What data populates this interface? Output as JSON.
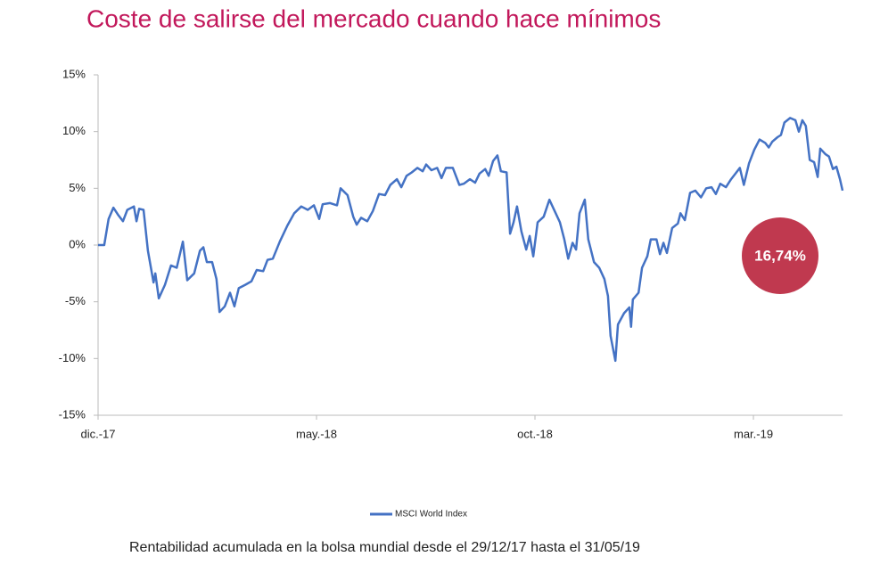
{
  "chart_data": {
    "type": "line",
    "title": "Coste de salirse del mercado cuando hace mínimos",
    "subtitle": "Rentabilidad acumulada en la bolsa mundial desde el 29/12/17 hasta el 31/05/19",
    "annotation": "16,74%",
    "x": [
      0,
      0.14,
      0.24,
      0.35,
      0.45,
      0.57,
      0.67,
      0.82,
      0.88,
      0.94,
      1.04,
      1.14,
      1.27,
      1.31,
      1.39,
      1.53,
      1.67,
      1.8,
      1.94,
      2.04,
      2.2,
      2.33,
      2.41,
      2.49,
      2.61,
      2.71,
      2.78,
      2.9,
      3.02,
      3.12,
      3.22,
      3.37,
      3.51,
      3.63,
      3.78,
      3.88,
      4.0,
      4.16,
      4.33,
      4.49,
      4.65,
      4.8,
      4.94,
      5.06,
      5.14,
      5.31,
      5.47,
      5.55,
      5.71,
      5.84,
      5.92,
      6.02,
      6.16,
      6.29,
      6.43,
      6.57,
      6.69,
      6.84,
      6.94,
      7.06,
      7.18,
      7.31,
      7.43,
      7.51,
      7.63,
      7.76,
      7.86,
      7.96,
      8.12,
      8.27,
      8.37,
      8.51,
      8.63,
      8.73,
      8.86,
      8.94,
      9.04,
      9.14,
      9.22,
      9.35,
      9.43,
      9.51,
      9.59,
      9.69,
      9.8,
      9.88,
      9.96,
      10.06,
      10.2,
      10.33,
      10.45,
      10.57,
      10.67,
      10.76,
      10.86,
      10.94,
      11.02,
      11.14,
      11.22,
      11.35,
      11.47,
      11.59,
      11.67,
      11.73,
      11.84,
      11.9,
      12.04,
      12.16,
      12.2,
      12.24,
      12.37,
      12.45,
      12.57,
      12.65,
      12.78,
      12.86,
      12.94,
      13.02,
      13.14,
      13.27,
      13.33,
      13.43,
      13.55,
      13.67,
      13.8,
      13.92,
      14.04,
      14.14,
      14.24,
      14.37,
      14.49,
      14.61,
      14.69,
      14.78,
      14.9,
      15.02,
      15.14,
      15.27,
      15.35,
      15.43,
      15.55,
      15.63,
      15.71,
      15.84,
      15.96,
      16.04,
      16.12,
      16.2,
      16.29,
      16.39,
      16.47,
      16.53,
      16.65,
      16.73,
      16.82,
      16.9,
      16.98,
      17.04
    ],
    "series": [
      {
        "name": "MSCI World Index",
        "color": "#4472c4",
        "values": [
          0,
          0,
          2.3,
          3.3,
          2.7,
          2.1,
          3.1,
          3.4,
          2.1,
          3.2,
          3.1,
          -0.5,
          -3.3,
          -2.5,
          -4.7,
          -3.5,
          -1.8,
          -2,
          0.3,
          -3.1,
          -2.5,
          -0.5,
          -0.2,
          -1.5,
          -1.5,
          -3,
          -5.9,
          -5.4,
          -4.2,
          -5.4,
          -3.8,
          -3.5,
          -3.2,
          -2.2,
          -2.3,
          -1.3,
          -1.2,
          0.3,
          1.7,
          2.8,
          3.4,
          3.1,
          3.5,
          2.3,
          3.6,
          3.7,
          3.5,
          5,
          4.4,
          2.5,
          1.8,
          2.4,
          2.1,
          3,
          4.5,
          4.4,
          5.3,
          5.8,
          5.1,
          6.1,
          6.4,
          6.8,
          6.5,
          7.1,
          6.6,
          6.8,
          5.9,
          6.8,
          6.8,
          5.3,
          5.4,
          5.8,
          5.5,
          6.3,
          6.7,
          6.1,
          7.4,
          7.9,
          6.5,
          6.4,
          1,
          2,
          3.4,
          1.2,
          -0.4,
          0.8,
          -1,
          2,
          2.5,
          4,
          3,
          2,
          0.5,
          -1.2,
          0.2,
          -0.4,
          2.8,
          4,
          0.5,
          -1.5,
          -2,
          -3,
          -4.5,
          -8,
          -10.2,
          -7,
          -6,
          -5.5,
          -7.2,
          -4.8,
          -4.2,
          -2,
          -1,
          0.5,
          0.5,
          -0.8,
          0.2,
          -0.7,
          1.5,
          1.9,
          2.8,
          2.2,
          4.6,
          4.8,
          4.2,
          5,
          5.1,
          4.5,
          5.4,
          5.1,
          5.8,
          6.4,
          6.8,
          5.3,
          7.2,
          8.4,
          9.3,
          9,
          8.6,
          9.1,
          9.5,
          9.7,
          10.8,
          11.2,
          11,
          10,
          11,
          10.5,
          7.5,
          7.3,
          6,
          8.5,
          8,
          7.8,
          6.7,
          6.9,
          5.8,
          4.8
        ]
      }
    ],
    "xlim": [
      0,
      17.04
    ],
    "xticks": [
      {
        "value": 0,
        "label": "dic.-17"
      },
      {
        "value": 5,
        "label": "may.-18"
      },
      {
        "value": 10,
        "label": "oct.-18"
      },
      {
        "value": 15,
        "label": "mar.-19"
      }
    ],
    "ylim": [
      -15,
      15
    ],
    "yticks": [
      {
        "value": -15,
        "label": "-15%"
      },
      {
        "value": -10,
        "label": "-10%"
      },
      {
        "value": -5,
        "label": "-5%"
      },
      {
        "value": 0,
        "label": "0%"
      },
      {
        "value": 5,
        "label": "5%"
      },
      {
        "value": 10,
        "label": "10%"
      },
      {
        "value": 15,
        "label": "15%"
      }
    ],
    "legend": "bottom",
    "annotation_color": "#c0394f",
    "title_color": "#c2185b"
  }
}
